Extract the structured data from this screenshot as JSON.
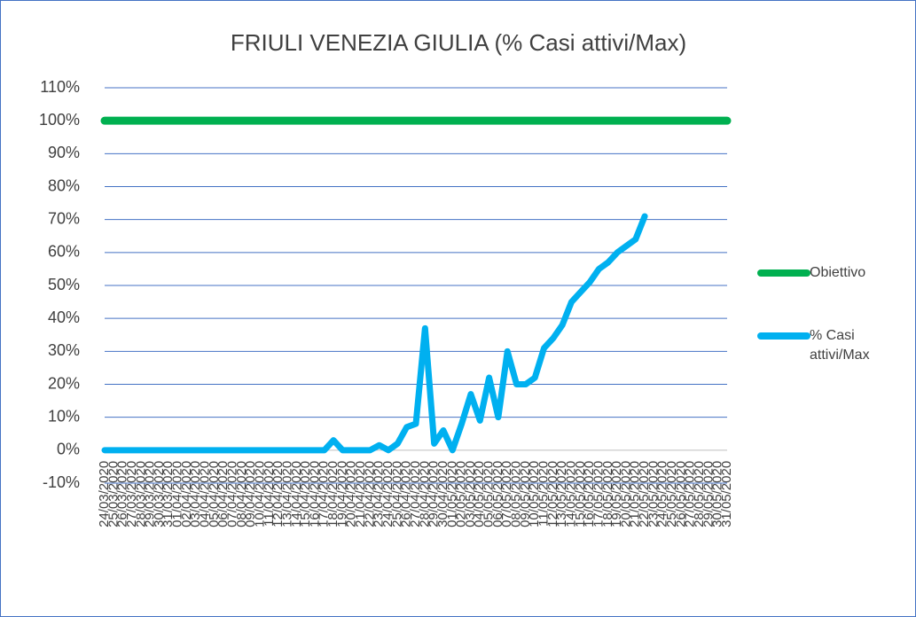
{
  "chart_data": {
    "type": "line",
    "title": "FRIULI VENEZIA GIULIA (% Casi attivi/Max)",
    "categories": [
      "24/03/2020",
      "25/03/2020",
      "26/03/2020",
      "27/03/2020",
      "28/03/2020",
      "29/03/2020",
      "30/03/2020",
      "31/03/2020",
      "01/04/2020",
      "02/04/2020",
      "03/04/2020",
      "04/04/2020",
      "05/04/2020",
      "06/04/2020",
      "07/04/2020",
      "08/04/2020",
      "09/04/2020",
      "10/04/2020",
      "11/04/2020",
      "12/04/2020",
      "13/04/2020",
      "14/04/2020",
      "15/04/2020",
      "16/04/2020",
      "17/04/2020",
      "18/04/2020",
      "19/04/2020",
      "20/04/2020",
      "21/04/2020",
      "22/04/2020",
      "23/04/2020",
      "24/04/2020",
      "25/04/2020",
      "26/04/2020",
      "27/04/2020",
      "28/04/2020",
      "29/04/2020",
      "30/04/2020",
      "01/05/2020",
      "02/05/2020",
      "03/05/2020",
      "04/05/2020",
      "05/05/2020",
      "06/05/2020",
      "07/05/2020",
      "08/05/2020",
      "09/05/2020",
      "10/05/2020",
      "11/05/2020",
      "12/05/2020",
      "13/05/2020",
      "14/05/2020",
      "15/05/2020",
      "16/05/2020",
      "17/05/2020",
      "18/05/2020",
      "19/05/2020",
      "20/05/2020",
      "21/05/2020",
      "22/05/2020",
      "23/05/2020",
      "24/05/2020",
      "25/05/2020",
      "26/05/2020",
      "27/05/2020",
      "28/05/2020",
      "29/05/2020",
      "30/05/2020",
      "31/05/2020"
    ],
    "series": [
      {
        "name": "Obiettivo",
        "color": "#00b050",
        "values": [
          100,
          100,
          100,
          100,
          100,
          100,
          100,
          100,
          100,
          100,
          100,
          100,
          100,
          100,
          100,
          100,
          100,
          100,
          100,
          100,
          100,
          100,
          100,
          100,
          100,
          100,
          100,
          100,
          100,
          100,
          100,
          100,
          100,
          100,
          100,
          100,
          100,
          100,
          100,
          100,
          100,
          100,
          100,
          100,
          100,
          100,
          100,
          100,
          100,
          100,
          100,
          100,
          100,
          100,
          100,
          100,
          100,
          100,
          100,
          100,
          100,
          100,
          100,
          100,
          100,
          100,
          100,
          100,
          100
        ]
      },
      {
        "name": "% Casi attivi/Max",
        "color": "#00b0f0",
        "values": [
          0,
          0,
          0,
          0,
          0,
          0,
          0,
          0,
          0,
          0,
          0,
          0,
          0,
          0,
          0,
          0,
          0,
          0,
          0,
          0,
          0,
          0,
          0,
          0,
          0,
          3,
          0,
          0,
          0,
          0,
          1.5,
          0,
          2,
          7,
          8,
          37,
          2,
          6,
          0,
          8,
          17,
          9,
          22,
          10,
          30,
          20,
          20,
          22,
          31,
          34,
          38,
          45,
          48,
          51,
          55,
          57,
          60,
          62,
          64,
          71,
          null,
          null,
          null,
          null,
          null,
          null,
          null,
          null,
          null
        ]
      }
    ],
    "ylim": [
      -10,
      110
    ],
    "yticks": [
      {
        "value": 110,
        "label": "110%"
      },
      {
        "value": 100,
        "label": "100%"
      },
      {
        "value": 90,
        "label": "90%"
      },
      {
        "value": 80,
        "label": "80%"
      },
      {
        "value": 70,
        "label": "70%"
      },
      {
        "value": 60,
        "label": "60%"
      },
      {
        "value": 50,
        "label": "50%"
      },
      {
        "value": 40,
        "label": "40%"
      },
      {
        "value": 30,
        "label": "30%"
      },
      {
        "value": 20,
        "label": "20%"
      },
      {
        "value": 10,
        "label": "10%"
      },
      {
        "value": 0,
        "label": "0%"
      },
      {
        "value": -10,
        "label": "-10%"
      }
    ],
    "grid": true,
    "legend": "right"
  }
}
